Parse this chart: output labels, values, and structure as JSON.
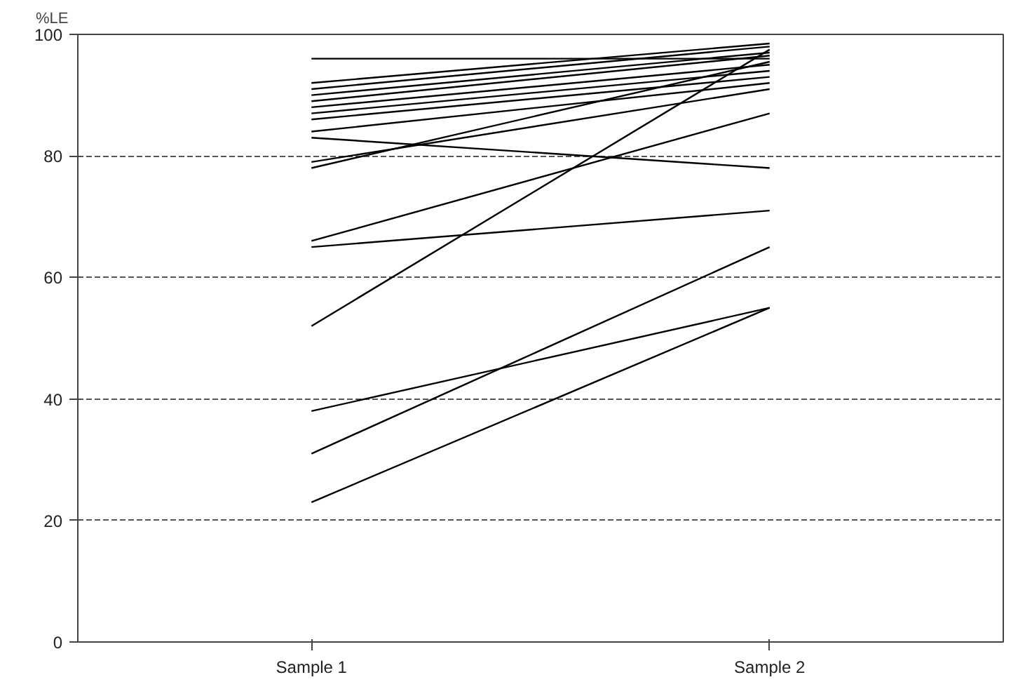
{
  "chart_data": {
    "type": "line",
    "ylabel": "%LE",
    "categories": [
      "Sample 1",
      "Sample 2"
    ],
    "ylim": [
      0,
      100
    ],
    "yticks": [
      0,
      20,
      40,
      60,
      80,
      100
    ],
    "grid": "y",
    "line_style": "solid",
    "series": [
      {
        "color": "#000000",
        "values": [
          23,
          55
        ]
      },
      {
        "color": "#000000",
        "values": [
          31,
          65
        ]
      },
      {
        "color": "#000000",
        "values": [
          38,
          55
        ]
      },
      {
        "color": "#000000",
        "values": [
          52,
          97.5
        ]
      },
      {
        "color": "#000000",
        "values": [
          65,
          71
        ]
      },
      {
        "color": "#000000",
        "values": [
          66,
          87
        ]
      },
      {
        "color": "#000000",
        "values": [
          78,
          95.5
        ]
      },
      {
        "color": "#000000",
        "values": [
          79,
          91
        ]
      },
      {
        "color": "#000000",
        "values": [
          83,
          78
        ]
      },
      {
        "color": "#000000",
        "values": [
          84,
          92
        ]
      },
      {
        "color": "#000000",
        "values": [
          86,
          93
        ]
      },
      {
        "color": "#000000",
        "values": [
          87,
          94
        ]
      },
      {
        "color": "#000000",
        "values": [
          88,
          95
        ]
      },
      {
        "color": "#000000",
        "values": [
          89,
          96.5
        ]
      },
      {
        "color": "#000000",
        "values": [
          90,
          97
        ]
      },
      {
        "color": "#000000",
        "values": [
          91,
          98
        ]
      },
      {
        "color": "#000000",
        "values": [
          92,
          98.5
        ]
      },
      {
        "color": "#000000",
        "values": [
          96,
          96
        ]
      }
    ]
  }
}
